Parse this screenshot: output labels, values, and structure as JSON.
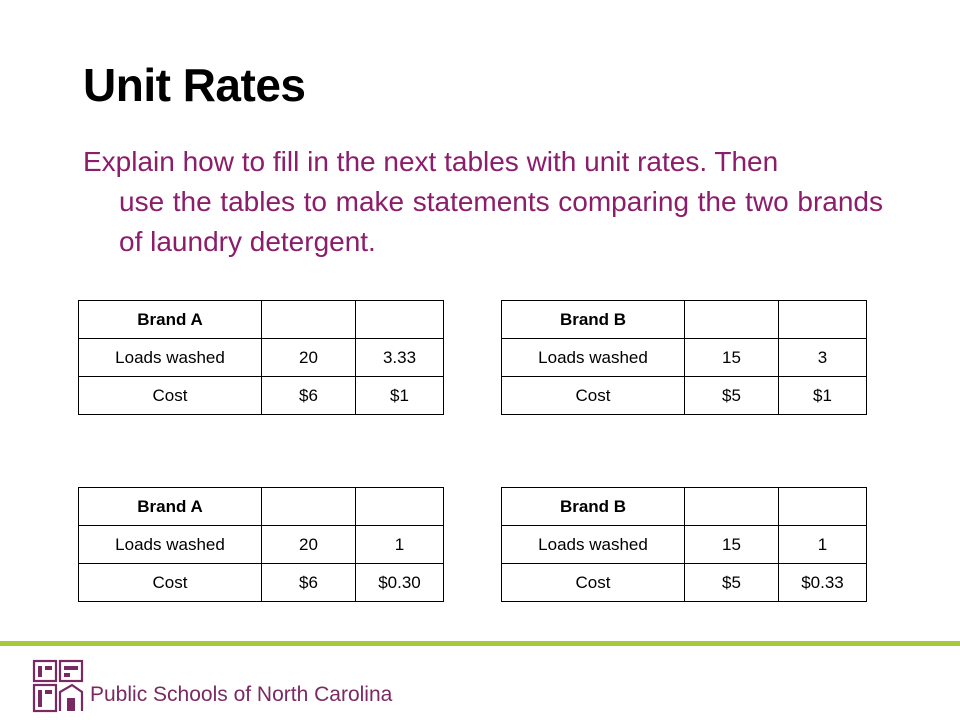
{
  "slide": {
    "title": "Unit Rates",
    "body_line1": "Explain  how to fill in the next tables with unit rates. Then",
    "body_line2": "use the tables to make statements comparing the two brands of laundry detergent."
  },
  "tables": [
    {
      "header": [
        "Brand A",
        "",
        ""
      ],
      "rows": [
        [
          "Loads washed",
          "20",
          "3.33"
        ],
        [
          "Cost",
          "$6",
          "$1"
        ]
      ]
    },
    {
      "header": [
        "Brand B",
        "",
        ""
      ],
      "rows": [
        [
          "Loads washed",
          "15",
          "3"
        ],
        [
          "Cost",
          "$5",
          "$1"
        ]
      ]
    },
    {
      "header": [
        "Brand A",
        "",
        ""
      ],
      "rows": [
        [
          "Loads washed",
          "20",
          "1"
        ],
        [
          "Cost",
          "$6",
          "$0.30"
        ]
      ]
    },
    {
      "header": [
        "Brand B",
        "",
        ""
      ],
      "rows": [
        [
          "Loads washed",
          "15",
          "1"
        ],
        [
          "Cost",
          "$5",
          "$0.33"
        ]
      ]
    }
  ],
  "footer": {
    "org_name": "Public Schools of North Carolina",
    "accent_color": "#a7c93b",
    "text_color": "#8b1d6a",
    "logo_icon": "ncdpi-logo-icon"
  }
}
